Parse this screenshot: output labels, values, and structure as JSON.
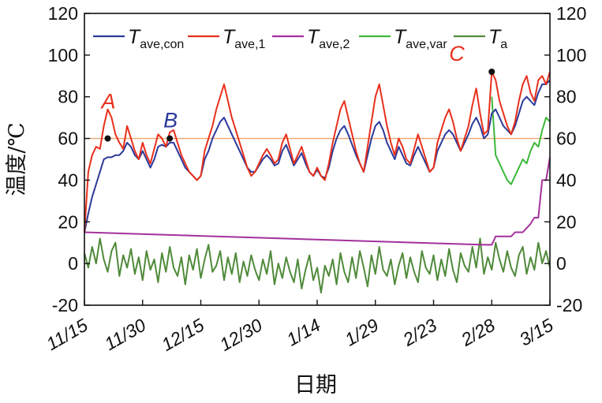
{
  "chart_data": {
    "type": "line",
    "title": "",
    "xlabel": "日期",
    "ylabel": "温度/℃",
    "ylim": [
      -20,
      120
    ],
    "yticks": [
      "120",
      "100",
      "80",
      "60",
      "40",
      "20",
      "0",
      "-20"
    ],
    "y2ticks": [
      "120",
      "100",
      "80",
      "60",
      "40",
      "20",
      "0",
      "-20"
    ],
    "x_tick_labels": [
      "11/15",
      "11/30",
      "12/15",
      "12/30",
      "1/14",
      "1/29",
      "2/23",
      "2/28",
      "3/15"
    ],
    "x_ticks_day_index": [
      0,
      15,
      30,
      45,
      60,
      75,
      90,
      105,
      120
    ],
    "reference_line": {
      "y": 60,
      "color": "#f2a56b"
    },
    "colors": {
      "T_ave_con": "#2b3a9a",
      "T_ave_1": "#e8301c",
      "T_ave_2": "#a3309c",
      "T_ave_var": "#3cb83a",
      "T_a": "#4f8a3a",
      "annotation": "#e8301c",
      "annotation_B": "#2b3a9a"
    },
    "legend": {
      "placement": "top-left",
      "entries": [
        {
          "key": "T_ave_con",
          "main": "T",
          "sub": "ave,con"
        },
        {
          "key": "T_ave_1",
          "main": "T",
          "sub": "ave,1"
        },
        {
          "key": "T_ave_2",
          "main": "T",
          "sub": "ave,2"
        },
        {
          "key": "T_ave_var",
          "main": "T",
          "sub": "ave,var"
        },
        {
          "key": "T_a",
          "main": "T",
          "sub": "a"
        }
      ]
    },
    "annotations": [
      {
        "label": "A",
        "day": 6,
        "y": 60
      },
      {
        "label": "B",
        "day": 22,
        "y": 60
      },
      {
        "label": "C",
        "day": 105,
        "y": 92
      }
    ],
    "series": [
      {
        "key": "T_ave_1",
        "x": [
          0,
          1,
          2,
          3,
          4,
          5,
          6,
          7,
          8,
          9,
          10,
          11,
          12,
          13,
          14,
          15,
          16,
          17,
          18,
          19,
          20,
          21,
          22,
          23,
          24,
          25,
          26,
          27,
          28,
          29,
          30,
          31,
          32,
          33,
          34,
          35,
          36,
          37,
          38,
          39,
          40,
          41,
          42,
          43,
          44,
          45,
          46,
          47,
          48,
          49,
          50,
          51,
          52,
          53,
          54,
          55,
          56,
          57,
          58,
          59,
          60,
          61,
          62,
          63,
          64,
          65,
          66,
          67,
          68,
          69,
          70,
          71,
          72,
          73,
          74,
          75,
          76,
          77,
          78,
          79,
          80,
          81,
          82,
          83,
          84,
          85,
          86,
          87,
          88,
          89,
          90,
          91,
          92,
          93,
          94,
          95,
          96,
          97,
          98,
          99,
          100,
          101,
          102,
          103,
          104,
          105,
          106,
          107,
          108,
          109,
          110,
          111,
          112,
          113,
          114,
          115,
          116,
          117,
          118,
          119,
          120
        ],
        "y": [
          15,
          44,
          52,
          56,
          55,
          66,
          74,
          70,
          62,
          58,
          55,
          66,
          60,
          54,
          50,
          58,
          52,
          48,
          55,
          62,
          60,
          56,
          63,
          64,
          58,
          52,
          48,
          44,
          42,
          40,
          42,
          54,
          60,
          66,
          74,
          80,
          86,
          78,
          70,
          64,
          58,
          52,
          46,
          42,
          44,
          48,
          52,
          55,
          52,
          48,
          50,
          58,
          62,
          55,
          48,
          52,
          56,
          50,
          44,
          42,
          46,
          42,
          40,
          48,
          58,
          66,
          74,
          78,
          70,
          62,
          54,
          48,
          44,
          56,
          68,
          80,
          86,
          76,
          66,
          58,
          52,
          60,
          56,
          50,
          48,
          55,
          62,
          56,
          50,
          44,
          46,
          58,
          64,
          70,
          74,
          68,
          60,
          54,
          60,
          66,
          76,
          84,
          72,
          62,
          64,
          92,
          88,
          78,
          72,
          66,
          62,
          68,
          78,
          86,
          90,
          82,
          78,
          88,
          90,
          86,
          92
        ]
      },
      {
        "key": "T_ave_con",
        "x": [
          0,
          1,
          2,
          3,
          4,
          5,
          6,
          7,
          8,
          9,
          10,
          11,
          12,
          13,
          14,
          15,
          16,
          17,
          18,
          19,
          20,
          21,
          22,
          23,
          24,
          25,
          26,
          27,
          28,
          29,
          30,
          31,
          32,
          33,
          34,
          35,
          36,
          37,
          38,
          39,
          40,
          41,
          42,
          43,
          44,
          45,
          46,
          47,
          48,
          49,
          50,
          51,
          52,
          53,
          54,
          55,
          56,
          57,
          58,
          59,
          60,
          61,
          62,
          63,
          64,
          65,
          66,
          67,
          68,
          69,
          70,
          71,
          72,
          73,
          74,
          75,
          76,
          77,
          78,
          79,
          80,
          81,
          82,
          83,
          84,
          85,
          86,
          87,
          88,
          89,
          90,
          91,
          92,
          93,
          94,
          95,
          96,
          97,
          98,
          99,
          100,
          101,
          102,
          103,
          104,
          105,
          106,
          107,
          108,
          109,
          110,
          111,
          112,
          113,
          114,
          115,
          116,
          117,
          118,
          119,
          120
        ],
        "y": [
          15,
          24,
          32,
          38,
          44,
          50,
          51,
          51,
          52,
          52,
          54,
          58,
          56,
          52,
          50,
          54,
          50,
          46,
          50,
          56,
          57,
          56,
          58,
          58,
          54,
          50,
          46,
          44,
          42,
          40,
          42,
          50,
          54,
          60,
          64,
          68,
          70,
          66,
          62,
          58,
          54,
          50,
          46,
          44,
          44,
          47,
          50,
          52,
          50,
          47,
          48,
          54,
          57,
          52,
          47,
          50,
          53,
          48,
          44,
          42,
          45,
          42,
          41,
          46,
          54,
          60,
          64,
          66,
          62,
          57,
          52,
          48,
          44,
          52,
          60,
          66,
          68,
          64,
          58,
          54,
          50,
          56,
          52,
          48,
          47,
          52,
          56,
          52,
          48,
          44,
          46,
          54,
          58,
          62,
          64,
          62,
          58,
          54,
          58,
          62,
          67,
          70,
          66,
          60,
          62,
          72,
          74,
          70,
          66,
          64,
          62,
          66,
          72,
          78,
          80,
          78,
          76,
          82,
          86,
          86,
          88
        ]
      },
      {
        "key": "T_ave_2",
        "x": [
          0,
          103,
          104,
          105,
          106,
          110,
          111,
          113,
          114,
          115,
          116,
          117,
          118,
          119,
          120
        ],
        "y": [
          15,
          9,
          9,
          9,
          13,
          13,
          15,
          15,
          17,
          19,
          22,
          22,
          40,
          40,
          51
        ]
      },
      {
        "key": "T_ave_var",
        "x": [
          105,
          106,
          107,
          108,
          109,
          110,
          111,
          112,
          113,
          114,
          115,
          116,
          117,
          118,
          119,
          120
        ],
        "y": [
          80,
          52,
          48,
          44,
          40,
          38,
          42,
          46,
          50,
          48,
          54,
          58,
          56,
          64,
          70,
          68
        ]
      },
      {
        "key": "T_a",
        "x": [
          0,
          1,
          2,
          3,
          4,
          5,
          6,
          7,
          8,
          9,
          10,
          11,
          12,
          13,
          14,
          15,
          16,
          17,
          18,
          19,
          20,
          21,
          22,
          23,
          24,
          25,
          26,
          27,
          28,
          29,
          30,
          31,
          32,
          33,
          34,
          35,
          36,
          37,
          38,
          39,
          40,
          41,
          42,
          43,
          44,
          45,
          46,
          47,
          48,
          49,
          50,
          51,
          52,
          53,
          54,
          55,
          56,
          57,
          58,
          59,
          60,
          61,
          62,
          63,
          64,
          65,
          66,
          67,
          68,
          69,
          70,
          71,
          72,
          73,
          74,
          75,
          76,
          77,
          78,
          79,
          80,
          81,
          82,
          83,
          84,
          85,
          86,
          87,
          88,
          89,
          90,
          91,
          92,
          93,
          94,
          95,
          96,
          97,
          98,
          99,
          100,
          101,
          102,
          103,
          104,
          105,
          106,
          107,
          108,
          109,
          110,
          111,
          112,
          113,
          114,
          115,
          116,
          117,
          118,
          119,
          120
        ],
        "y": [
          5,
          -2,
          8,
          0,
          12,
          2,
          -4,
          6,
          10,
          -6,
          4,
          -2,
          7,
          -5,
          3,
          -8,
          6,
          -3,
          2,
          -9,
          5,
          -4,
          8,
          -2,
          -6,
          3,
          -10,
          4,
          -3,
          7,
          -7,
          2,
          9,
          -4,
          -1,
          6,
          -8,
          3,
          -5,
          5,
          -9,
          1,
          -6,
          4,
          -3,
          -8,
          2,
          -5,
          6,
          -10,
          0,
          -7,
          3,
          -4,
          -9,
          2,
          -12,
          -3,
          4,
          -8,
          -2,
          -14,
          -1,
          -6,
          2,
          -10,
          5,
          -4,
          -9,
          3,
          -7,
          6,
          -2,
          -11,
          4,
          -5,
          8,
          -3,
          -6,
          2,
          -10,
          -1,
          5,
          -7,
          3,
          -4,
          -9,
          6,
          -2,
          -5,
          4,
          -8,
          2,
          -6,
          7,
          -3,
          -9,
          5,
          -1,
          -4,
          8,
          -2,
          12,
          -5,
          3,
          -3,
          10,
          2,
          -4,
          6,
          -2,
          -6,
          4,
          8,
          -5,
          3,
          -3,
          10,
          0,
          6,
          -2
        ]
      }
    ]
  }
}
